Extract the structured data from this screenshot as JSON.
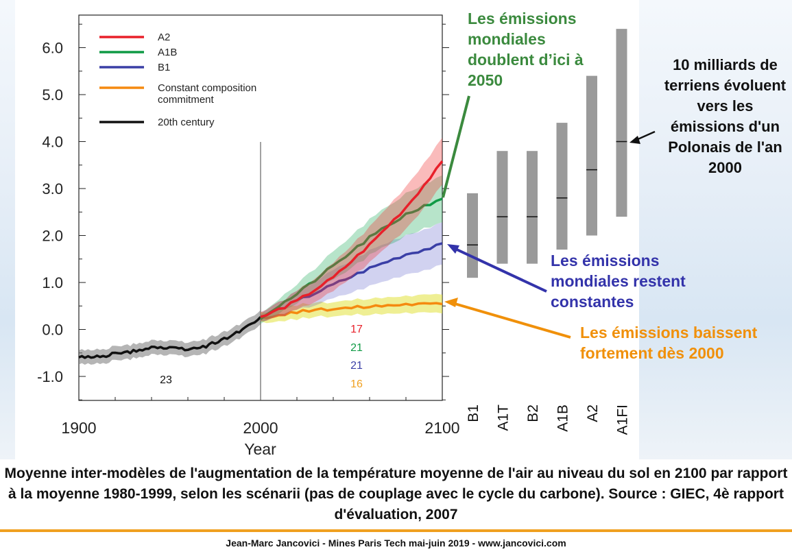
{
  "annotations": {
    "green": "Les émissions mondiales doublent d’ici à 2050",
    "blue": "Les émissions mondiales restent constantes",
    "orange": "Les émissions baissent fortement dès 2000",
    "black": "10 milliards de terriens évoluent vers les émissions d'un Polonais de l'an 2000"
  },
  "caption": "Moyenne inter-modèles de l'augmentation de la température moyenne de l'air au niveau du sol en 2100 par rapport à la moyenne 1980-1999, selon les scénarii (pas de couplage avec le cycle du carbone). Source : GIEC, 4è rapport d'évaluation, 2007",
  "footer": "Jean-Marc Jancovici - Mines Paris Tech mai-juin 2019 - www.jancovici.com",
  "colors": {
    "A2": "#e8202a",
    "A1B": "#0f9a45",
    "B1": "#3a3fa6",
    "commitment": "#f58a10",
    "twentieth": "#111111",
    "green_annotation": "#3b8a3e",
    "blue_annotation": "#3333aa",
    "orange_annotation": "#f0900a",
    "bar": "#9a9a9a"
  },
  "chart_data": [
    {
      "type": "line",
      "xlabel": "Year",
      "ylabel": "",
      "xlim": [
        1900,
        2100
      ],
      "ylim": [
        -1.0,
        6.0
      ],
      "x_ticks": [
        "1900",
        "2000",
        "2100"
      ],
      "y_ticks": [
        "-1.0",
        "0.0",
        "1.0",
        "2.0",
        "3.0",
        "4.0",
        "5.0",
        "6.0"
      ],
      "legend_position": "top-left",
      "legend": [
        "A2",
        "A1B",
        "B1",
        "Constant composition commitment",
        "20th century"
      ],
      "series": [
        {
          "name": "20th century",
          "x": [
            1900,
            1910,
            1920,
            1930,
            1940,
            1950,
            1960,
            1970,
            1980,
            1990,
            2000
          ],
          "values": [
            -0.6,
            -0.58,
            -0.52,
            -0.47,
            -0.37,
            -0.4,
            -0.42,
            -0.36,
            -0.2,
            0.0,
            0.25
          ],
          "band_half_width": 0.15
        },
        {
          "name": "A2",
          "x": [
            2000,
            2020,
            2040,
            2060,
            2080,
            2100
          ],
          "values": [
            0.25,
            0.6,
            1.1,
            1.8,
            2.6,
            3.55
          ],
          "band_half_width": [
            0.1,
            0.2,
            0.3,
            0.38,
            0.45,
            0.5
          ]
        },
        {
          "name": "A1B",
          "x": [
            2000,
            2020,
            2040,
            2060,
            2080,
            2100
          ],
          "values": [
            0.25,
            0.75,
            1.35,
            1.95,
            2.45,
            2.8
          ],
          "band_half_width": [
            0.1,
            0.2,
            0.3,
            0.38,
            0.45,
            0.5
          ]
        },
        {
          "name": "B1",
          "x": [
            2000,
            2020,
            2040,
            2060,
            2080,
            2100
          ],
          "values": [
            0.25,
            0.6,
            0.95,
            1.3,
            1.6,
            1.8
          ],
          "band_half_width": [
            0.1,
            0.2,
            0.3,
            0.38,
            0.42,
            0.45
          ]
        },
        {
          "name": "Constant composition commitment",
          "x": [
            2000,
            2020,
            2040,
            2060,
            2080,
            2100
          ],
          "values": [
            0.25,
            0.37,
            0.45,
            0.5,
            0.55,
            0.55
          ],
          "band_half_width": [
            0.1,
            0.15,
            0.15,
            0.17,
            0.18,
            0.2
          ]
        }
      ],
      "model_counts": [
        {
          "label": "23",
          "series": "20th century"
        },
        {
          "label": "17",
          "series": "A2"
        },
        {
          "label": "21",
          "series": "A1B"
        },
        {
          "label": "21",
          "series": "B1"
        },
        {
          "label": "16",
          "series": "Constant composition commitment"
        }
      ]
    },
    {
      "type": "bar",
      "subtype": "range",
      "categories": [
        "B1",
        "A1T",
        "B2",
        "A1B",
        "A2",
        "A1FI"
      ],
      "low": [
        1.1,
        1.4,
        1.4,
        1.7,
        2.0,
        2.4
      ],
      "best": [
        1.8,
        2.4,
        2.4,
        2.8,
        3.4,
        4.0
      ],
      "high": [
        2.9,
        3.8,
        3.8,
        4.4,
        5.4,
        6.4
      ]
    }
  ]
}
